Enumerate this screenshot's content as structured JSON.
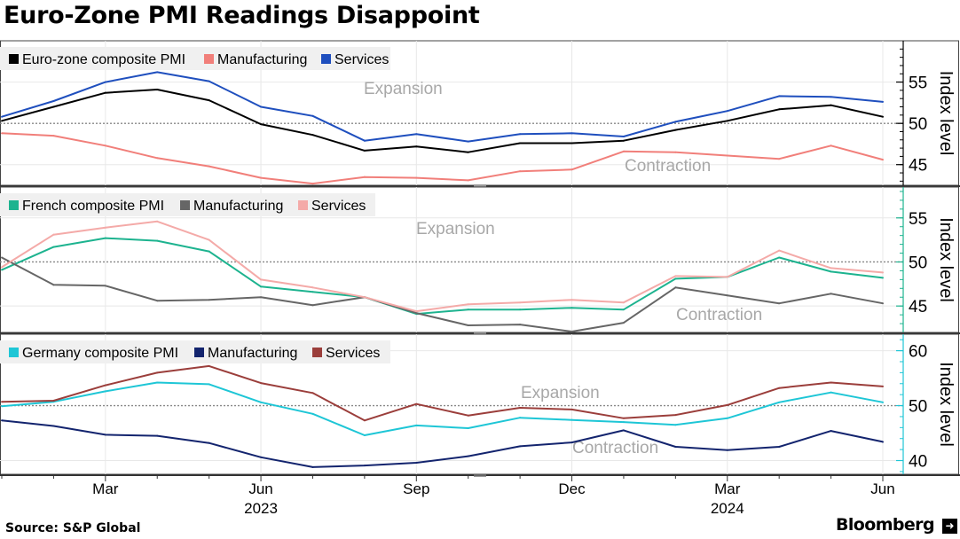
{
  "title": "Euro-Zone PMI Readings Disappoint",
  "source": "Source: S&P Global",
  "brand": "Bloomberg",
  "chart_data": [
    {
      "type": "line",
      "panel": "Euro-zone",
      "x": [
        "2023-01",
        "2023-02",
        "2023-03",
        "2023-04",
        "2023-05",
        "2023-06",
        "2023-07",
        "2023-08",
        "2023-09",
        "2023-10",
        "2023-11",
        "2023-12",
        "2024-01",
        "2024-02",
        "2024-03",
        "2024-04",
        "2024-05",
        "2024-06"
      ],
      "ylabel": "Index level",
      "ylim": [
        42.5,
        60
      ],
      "yticks": [
        45,
        50,
        55
      ],
      "reference_line": 50,
      "annotations": [
        "Expansion",
        "Contraction"
      ],
      "series": [
        {
          "name": "Euro-zone composite PMI",
          "color": "#000000",
          "values": [
            50.3,
            52.0,
            53.7,
            54.1,
            52.8,
            49.9,
            48.6,
            46.7,
            47.2,
            46.5,
            47.6,
            47.6,
            47.9,
            49.2,
            50.3,
            51.7,
            52.2,
            50.8
          ]
        },
        {
          "name": "Manufacturing",
          "color": "#f17f7a",
          "values": [
            48.8,
            48.5,
            47.3,
            45.8,
            44.8,
            43.4,
            42.7,
            43.5,
            43.4,
            43.1,
            44.2,
            44.4,
            46.6,
            46.5,
            46.1,
            45.7,
            47.3,
            45.6
          ]
        },
        {
          "name": "Services",
          "color": "#1f4fbe",
          "values": [
            50.8,
            52.7,
            55.0,
            56.2,
            55.1,
            52.0,
            50.9,
            47.9,
            48.7,
            47.8,
            48.7,
            48.8,
            48.4,
            50.2,
            51.5,
            53.3,
            53.2,
            52.6
          ]
        }
      ]
    },
    {
      "type": "line",
      "panel": "France",
      "x": [
        "2023-01",
        "2023-02",
        "2023-03",
        "2023-04",
        "2023-05",
        "2023-06",
        "2023-07",
        "2023-08",
        "2023-09",
        "2023-10",
        "2023-11",
        "2023-12",
        "2024-01",
        "2024-02",
        "2024-03",
        "2024-04",
        "2024-05",
        "2024-06"
      ],
      "ylabel": "Index level",
      "ylim": [
        42,
        58.5
      ],
      "yticks": [
        45,
        50,
        55
      ],
      "reference_line": 50,
      "annotations": [
        "Expansion",
        "Contraction"
      ],
      "series": [
        {
          "name": "French composite PMI",
          "color": "#1db38f",
          "values": [
            49.1,
            51.7,
            52.7,
            52.4,
            51.2,
            47.2,
            46.6,
            46.0,
            44.1,
            44.6,
            44.6,
            44.8,
            44.6,
            48.1,
            48.3,
            50.5,
            48.9,
            48.2
          ]
        },
        {
          "name": "Manufacturing",
          "color": "#666666",
          "values": [
            50.5,
            47.4,
            47.3,
            45.6,
            45.7,
            46.0,
            45.1,
            46.0,
            44.2,
            42.8,
            42.9,
            42.1,
            43.1,
            47.1,
            46.2,
            45.3,
            46.4,
            45.3
          ]
        },
        {
          "name": "Services",
          "color": "#f4aaa8",
          "values": [
            49.4,
            53.1,
            53.9,
            54.6,
            52.5,
            48.0,
            47.1,
            46.0,
            44.4,
            45.2,
            45.4,
            45.7,
            45.4,
            48.4,
            48.3,
            51.3,
            49.3,
            48.8
          ]
        }
      ]
    },
    {
      "type": "line",
      "panel": "Germany",
      "x": [
        "2023-01",
        "2023-02",
        "2023-03",
        "2023-04",
        "2023-05",
        "2023-06",
        "2023-07",
        "2023-08",
        "2023-09",
        "2023-10",
        "2023-11",
        "2023-12",
        "2024-01",
        "2024-02",
        "2024-03",
        "2024-04",
        "2024-05",
        "2024-06"
      ],
      "ylabel": "Index level",
      "ylim": [
        37.5,
        63
      ],
      "yticks": [
        40,
        50,
        60
      ],
      "reference_line": 50,
      "annotations": [
        "Expansion",
        "Contraction"
      ],
      "series": [
        {
          "name": "Germany composite PMI",
          "color": "#1ec6d6",
          "values": [
            49.9,
            50.7,
            52.6,
            54.2,
            53.9,
            50.6,
            48.5,
            44.6,
            46.4,
            45.9,
            47.8,
            47.4,
            47.0,
            46.5,
            47.7,
            50.6,
            52.4,
            50.6
          ]
        },
        {
          "name": "Manufacturing",
          "color": "#13246e",
          "values": [
            47.3,
            46.3,
            44.7,
            44.5,
            43.2,
            40.6,
            38.8,
            39.1,
            39.6,
            40.8,
            42.6,
            43.3,
            45.5,
            42.5,
            41.9,
            42.5,
            45.4,
            43.4
          ]
        },
        {
          "name": "Services",
          "color": "#9b3e3b",
          "values": [
            50.7,
            50.9,
            53.7,
            56.0,
            57.2,
            54.1,
            52.3,
            47.3,
            50.3,
            48.2,
            49.6,
            49.3,
            47.7,
            48.3,
            50.1,
            53.2,
            54.2,
            53.5
          ]
        }
      ]
    }
  ],
  "x_axis": {
    "month_labels": [
      "Mar",
      "Jun",
      "Sep",
      "Dec",
      "Mar",
      "Jun"
    ],
    "year_labels": [
      "2023",
      "2024"
    ]
  }
}
